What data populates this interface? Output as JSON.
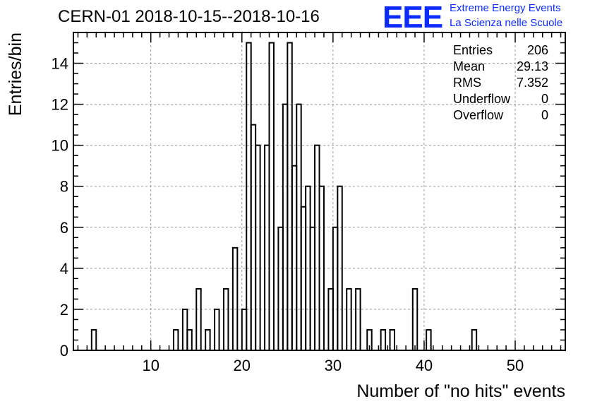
{
  "header": {
    "title": "CERN-01 2018-10-15--2018-10-16",
    "logo_text": "EEE",
    "logo_line1": "Extreme Energy Events",
    "logo_line2": "La Scienza nelle Scuole",
    "logo_color": "#0b2bff"
  },
  "stats": [
    {
      "label": "Entries",
      "value": "206"
    },
    {
      "label": "Mean",
      "value": "29.13"
    },
    {
      "label": "RMS",
      "value": "7.352"
    },
    {
      "label": "Underflow",
      "value": "0"
    },
    {
      "label": "Overflow",
      "value": "0"
    }
  ],
  "chart_data": {
    "type": "bar",
    "style": "step-histogram",
    "xlabel": "Number of \"no hits\" events",
    "ylabel": "Entries/bin",
    "xlim": [
      1.5,
      55.5
    ],
    "ylim": [
      0,
      15.5
    ],
    "bin_width": 0.5,
    "x_ticks": [
      10,
      20,
      30,
      40,
      50
    ],
    "y_ticks": [
      0,
      2,
      4,
      6,
      8,
      10,
      12,
      14
    ],
    "grid": true,
    "legend": "top-right stats box",
    "bins": [
      {
        "x": 3.75,
        "value": 1
      },
      {
        "x": 4.25,
        "value": 0
      },
      {
        "x": 12.75,
        "value": 1
      },
      {
        "x": 13.75,
        "value": 2
      },
      {
        "x": 14.25,
        "value": 1
      },
      {
        "x": 15.25,
        "value": 3
      },
      {
        "x": 16.25,
        "value": 1
      },
      {
        "x": 17.25,
        "value": 2
      },
      {
        "x": 18.25,
        "value": 3
      },
      {
        "x": 19.25,
        "value": 5
      },
      {
        "x": 20.25,
        "value": 2
      },
      {
        "x": 20.75,
        "value": 15
      },
      {
        "x": 21.25,
        "value": 11
      },
      {
        "x": 21.75,
        "value": 10
      },
      {
        "x": 22.25,
        "value": 0
      },
      {
        "x": 22.75,
        "value": 10
      },
      {
        "x": 23.25,
        "value": 15
      },
      {
        "x": 23.75,
        "value": 0
      },
      {
        "x": 24.25,
        "value": 6
      },
      {
        "x": 24.75,
        "value": 12
      },
      {
        "x": 25.25,
        "value": 15
      },
      {
        "x": 25.75,
        "value": 9
      },
      {
        "x": 26.25,
        "value": 12
      },
      {
        "x": 26.75,
        "value": 7
      },
      {
        "x": 27.25,
        "value": 8
      },
      {
        "x": 27.75,
        "value": 6
      },
      {
        "x": 28.25,
        "value": 10
      },
      {
        "x": 28.75,
        "value": 8
      },
      {
        "x": 29.75,
        "value": 3
      },
      {
        "x": 30.25,
        "value": 6
      },
      {
        "x": 30.75,
        "value": 8
      },
      {
        "x": 31.75,
        "value": 3
      },
      {
        "x": 32.75,
        "value": 3
      },
      {
        "x": 34.0,
        "value": 1
      },
      {
        "x": 35.5,
        "value": 1
      },
      {
        "x": 36.5,
        "value": 1
      },
      {
        "x": 39.0,
        "value": 3
      },
      {
        "x": 40.5,
        "value": 1
      },
      {
        "x": 45.5,
        "value": 1
      }
    ]
  }
}
